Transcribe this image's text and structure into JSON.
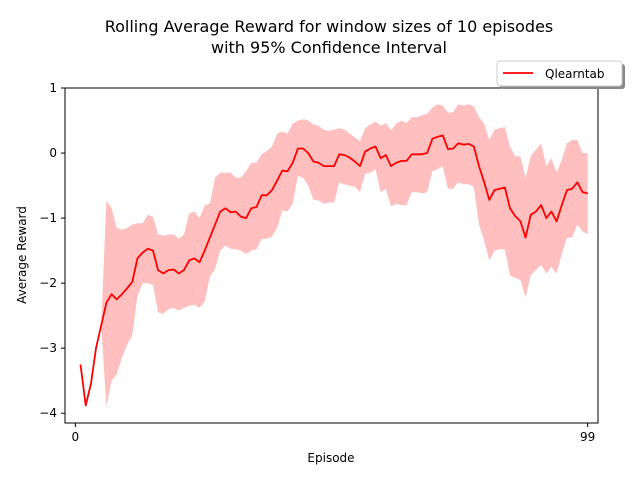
{
  "chart_data": {
    "type": "line",
    "title_lines": [
      "Rolling Average Reward for window sizes of 10 episodes",
      "with 95% Confidence Interval"
    ],
    "xlabel": "Episode",
    "ylabel": "Average Reward",
    "xlim": [
      -2,
      101
    ],
    "ylim": [
      -4.15,
      1
    ],
    "xticks": [
      0,
      99
    ],
    "yticks": [
      1,
      0,
      -1,
      -2,
      -3,
      -4
    ],
    "ytick_labels": [
      "1",
      "0",
      "−1",
      "−2",
      "−3",
      "−4"
    ],
    "grid": false,
    "legend_position": "top-right",
    "series": [
      {
        "name": "Qlearntab",
        "color": "#ff0000",
        "band_color": "#ffbfbf",
        "x": [
          1,
          2,
          3,
          4,
          5,
          6,
          7,
          8,
          9,
          10,
          11,
          12,
          13,
          14,
          15,
          16,
          17,
          18,
          19,
          20,
          21,
          22,
          23,
          24,
          25,
          26,
          27,
          28,
          29,
          30,
          31,
          32,
          33,
          34,
          35,
          36,
          37,
          38,
          39,
          40,
          41,
          42,
          43,
          44,
          45,
          46,
          47,
          48,
          49,
          50,
          51,
          52,
          53,
          54,
          55,
          56,
          57,
          58,
          59,
          60,
          61,
          62,
          63,
          64,
          65,
          66,
          67,
          68,
          69,
          70,
          71,
          72,
          73,
          74,
          75,
          76,
          77,
          78,
          79,
          80,
          81,
          82,
          83,
          84,
          85,
          86,
          87,
          88,
          89,
          90,
          91,
          92,
          93,
          94,
          95,
          96,
          97,
          98,
          99
        ],
        "y": [
          -3.25,
          -3.88,
          -3.55,
          -3.0,
          -2.65,
          -2.3,
          -2.17,
          -2.25,
          -2.17,
          -2.08,
          -1.98,
          -1.62,
          -1.53,
          -1.47,
          -1.5,
          -1.8,
          -1.85,
          -1.8,
          -1.79,
          -1.85,
          -1.8,
          -1.65,
          -1.62,
          -1.68,
          -1.5,
          -1.3,
          -1.1,
          -0.9,
          -0.85,
          -0.91,
          -0.9,
          -0.98,
          -1.0,
          -0.85,
          -0.83,
          -0.65,
          -0.65,
          -0.57,
          -0.42,
          -0.27,
          -0.28,
          -0.15,
          0.07,
          0.07,
          0.0,
          -0.13,
          -0.15,
          -0.2,
          -0.2,
          -0.2,
          -0.02,
          -0.03,
          -0.07,
          -0.13,
          -0.2,
          0.02,
          0.07,
          0.1,
          -0.08,
          -0.03,
          -0.2,
          -0.15,
          -0.12,
          -0.12,
          -0.02,
          -0.02,
          -0.02,
          0.0,
          0.22,
          0.25,
          0.27,
          0.06,
          0.07,
          0.15,
          0.13,
          0.14,
          0.1,
          -0.2,
          -0.45,
          -0.72,
          -0.57,
          -0.55,
          -0.53,
          -0.85,
          -0.97,
          -1.05,
          -1.3,
          -0.95,
          -0.9,
          -0.8,
          -1.0,
          -0.9,
          -1.05,
          -0.8,
          -0.57,
          -0.55,
          -0.45,
          -0.6,
          -0.62
        ],
        "upper": [
          -3.25,
          -3.88,
          -3.55,
          -3.0,
          -2.65,
          -0.73,
          -0.85,
          -1.15,
          -1.18,
          -1.15,
          -1.1,
          -1.08,
          -1.08,
          -0.95,
          -0.98,
          -1.25,
          -1.27,
          -1.25,
          -1.25,
          -1.32,
          -1.25,
          -0.93,
          -0.9,
          -1.0,
          -0.8,
          -0.78,
          -0.38,
          -0.3,
          -0.3,
          -0.3,
          -0.38,
          -0.38,
          -0.28,
          -0.15,
          -0.15,
          -0.02,
          0.03,
          0.1,
          0.3,
          0.33,
          0.3,
          0.45,
          0.5,
          0.52,
          0.5,
          0.44,
          0.42,
          0.36,
          0.34,
          0.36,
          0.38,
          0.36,
          0.3,
          0.24,
          0.18,
          0.38,
          0.44,
          0.48,
          0.42,
          0.46,
          0.35,
          0.45,
          0.5,
          0.46,
          0.55,
          0.55,
          0.58,
          0.6,
          0.7,
          0.75,
          0.73,
          0.62,
          0.63,
          0.75,
          0.73,
          0.75,
          0.72,
          0.55,
          0.45,
          0.2,
          0.36,
          0.38,
          0.4,
          0.1,
          -0.05,
          -0.05,
          -0.38,
          -0.05,
          0.05,
          0.15,
          -0.2,
          -0.08,
          -0.3,
          -0.1,
          0.15,
          0.2,
          0.2,
          0.0,
          0.0
        ],
        "lower": [
          -3.25,
          -3.88,
          -3.55,
          -3.0,
          -2.65,
          -3.9,
          -3.5,
          -3.4,
          -3.15,
          -2.95,
          -2.8,
          -2.2,
          -2.0,
          -2.0,
          -2.03,
          -2.45,
          -2.47,
          -2.4,
          -2.38,
          -2.42,
          -2.38,
          -2.35,
          -2.33,
          -2.38,
          -2.28,
          -1.9,
          -1.78,
          -1.5,
          -1.42,
          -1.47,
          -1.48,
          -1.5,
          -1.55,
          -1.5,
          -1.48,
          -1.32,
          -1.32,
          -1.28,
          -1.15,
          -0.88,
          -0.9,
          -0.78,
          -0.35,
          -0.38,
          -0.5,
          -0.72,
          -0.73,
          -0.78,
          -0.76,
          -0.76,
          -0.45,
          -0.48,
          -0.5,
          -0.52,
          -0.6,
          -0.32,
          -0.3,
          -0.25,
          -0.6,
          -0.55,
          -0.82,
          -0.78,
          -0.8,
          -0.8,
          -0.6,
          -0.6,
          -0.62,
          -0.6,
          -0.28,
          -0.25,
          -0.2,
          -0.55,
          -0.55,
          -0.45,
          -0.48,
          -0.48,
          -0.52,
          -1.1,
          -1.35,
          -1.65,
          -1.5,
          -1.48,
          -1.48,
          -1.88,
          -1.92,
          -1.95,
          -2.22,
          -1.88,
          -1.8,
          -1.72,
          -1.85,
          -1.75,
          -1.85,
          -1.55,
          -1.3,
          -1.3,
          -1.1,
          -1.2,
          -1.25
        ]
      }
    ]
  }
}
